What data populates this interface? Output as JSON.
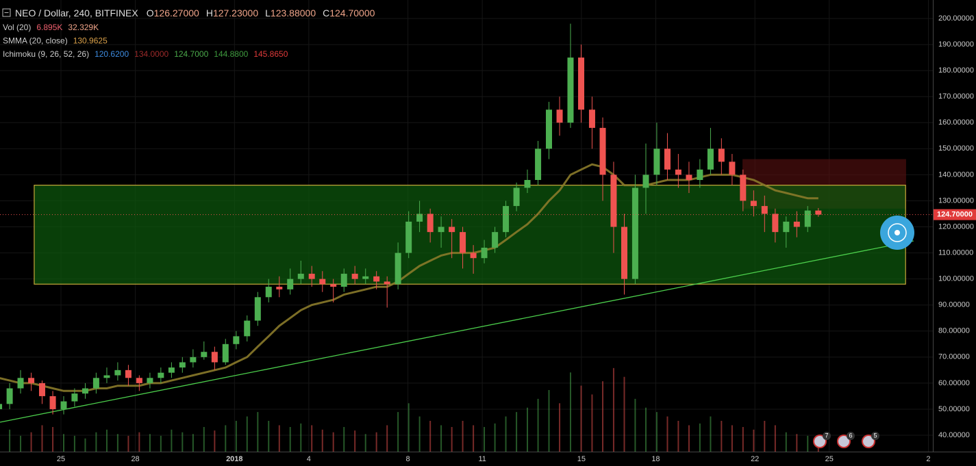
{
  "chart_data": {
    "type": "candlestick",
    "title": "NEO / Dollar, 240, BITFINEX",
    "ohlc_header": [
      {
        "key": "O",
        "value": "126.27000"
      },
      {
        "key": "H",
        "value": "127.23000"
      },
      {
        "key": "L",
        "value": "123.88000"
      },
      {
        "key": "C",
        "value": "124.70000"
      }
    ],
    "indicators": [
      {
        "name": "Vol (20)",
        "values": [
          "6.895K",
          "32.329K"
        ],
        "colors": [
          "#f0606e",
          "#f0a58a"
        ]
      },
      {
        "name": "SMMA (20, close)",
        "values": [
          "130.9625"
        ],
        "colors": [
          "#d9a04a"
        ]
      },
      {
        "name": "Ichimoku (9, 26, 52, 26)",
        "values": [
          "120.6200",
          "134.0000",
          "124.7000",
          "144.8800",
          "145.8650"
        ],
        "colors": [
          "#3d8be0",
          "#9c2a2a",
          "#4aa84a",
          "#3e9a3e",
          "#e03a3a"
        ]
      }
    ],
    "x": [
      -2.5,
      -2.07,
      -1.63,
      -1.2,
      -0.76,
      -0.33,
      0.11,
      0.55,
      0.98,
      1.42,
      1.85,
      2.29,
      2.72,
      3.16,
      3.59,
      4.03,
      4.46,
      4.9,
      5.33,
      5.77,
      6.2,
      6.64,
      7.07,
      7.51,
      7.94,
      8.38,
      8.81,
      9.25,
      9.68,
      10.12,
      10.55,
      10.99,
      11.42,
      11.86,
      12.29,
      12.73,
      13.16,
      13.6,
      14.03,
      14.47,
      14.9,
      15.34,
      15.77,
      16.21,
      16.64,
      17.08,
      17.51,
      17.95,
      18.38,
      18.82,
      19.25,
      19.69,
      20.12,
      20.56,
      20.99,
      21.43,
      21.86,
      22.3,
      22.73,
      23.17,
      23.6,
      24.04,
      24.47,
      24.91,
      25.34,
      25.78,
      26.21,
      26.65,
      27.08,
      27.52,
      27.95,
      28.39,
      28.82,
      29.26,
      29.69,
      30.13,
      30.56
    ],
    "open": [
      50,
      52,
      58,
      62,
      60,
      55,
      50,
      53,
      56,
      58,
      62,
      63,
      65,
      62,
      60,
      62,
      64,
      66,
      68,
      70,
      72,
      68,
      75,
      78,
      84,
      93,
      97,
      96,
      100,
      102,
      100,
      98,
      97,
      102,
      100,
      101,
      99,
      98,
      110,
      122,
      125,
      118,
      120,
      118,
      110,
      108,
      112,
      118,
      128,
      135,
      138,
      150,
      165,
      160,
      185,
      165,
      158,
      140,
      120,
      100,
      135,
      140,
      150,
      142,
      140,
      138,
      142,
      150,
      145,
      140,
      130,
      128,
      125,
      118,
      122,
      120,
      126.27
    ],
    "high": [
      55,
      60,
      65,
      64,
      61,
      57,
      55,
      58,
      60,
      64,
      66,
      68,
      67,
      63,
      64,
      66,
      68,
      70,
      73,
      76,
      74,
      77,
      80,
      86,
      95,
      100,
      101,
      104,
      107,
      105,
      103,
      100,
      104,
      105,
      104,
      103,
      101,
      114,
      126,
      130,
      127,
      124,
      123,
      120,
      113,
      115,
      120,
      130,
      137,
      142,
      153,
      168,
      170,
      198,
      190,
      170,
      162,
      145,
      125,
      140,
      152,
      160,
      156,
      148,
      145,
      146,
      158,
      154,
      148,
      142,
      134,
      132,
      127,
      124,
      126,
      128,
      127.23
    ],
    "low": [
      48,
      50,
      56,
      57,
      52,
      48,
      48,
      51,
      54,
      56,
      60,
      61,
      59,
      57,
      58,
      60,
      62,
      64,
      66,
      69,
      65,
      67,
      73,
      76,
      82,
      91,
      93,
      94,
      98,
      97,
      95,
      91,
      95,
      98,
      98,
      96,
      89,
      96,
      108,
      118,
      114,
      112,
      108,
      104,
      102,
      106,
      110,
      116,
      126,
      133,
      136,
      146,
      155,
      158,
      160,
      150,
      130,
      110,
      94,
      98,
      125,
      136,
      138,
      135,
      133,
      135,
      140,
      140,
      136,
      126,
      124,
      118,
      114,
      112,
      116,
      118,
      123.88
    ],
    "close": [
      52,
      58,
      62,
      60,
      55,
      50,
      53,
      56,
      58,
      62,
      63,
      65,
      62,
      60,
      62,
      64,
      66,
      68,
      70,
      72,
      68,
      75,
      78,
      84,
      93,
      97,
      96,
      100,
      102,
      100,
      98,
      97,
      102,
      100,
      101,
      99,
      98,
      110,
      122,
      125,
      118,
      120,
      118,
      110,
      108,
      112,
      118,
      128,
      135,
      138,
      150,
      165,
      160,
      185,
      165,
      158,
      140,
      120,
      100,
      135,
      140,
      150,
      142,
      140,
      138,
      142,
      150,
      145,
      140,
      130,
      128,
      125,
      118,
      122,
      120,
      126.27,
      124.7
    ],
    "smma": [
      62,
      61,
      60,
      60,
      59,
      58,
      57,
      57,
      57,
      58,
      58,
      59,
      59,
      59,
      60,
      60,
      61,
      62,
      63,
      64,
      65,
      66,
      68,
      70,
      74,
      78,
      82,
      85,
      88,
      90,
      91,
      92,
      94,
      95,
      96,
      97,
      97,
      99,
      102,
      105,
      107,
      109,
      110,
      110,
      110,
      111,
      112,
      115,
      118,
      121,
      125,
      130,
      134,
      140,
      142,
      144,
      143,
      140,
      136,
      136,
      136,
      137,
      138,
      138,
      138,
      139,
      140,
      140,
      140,
      139,
      138,
      136,
      134,
      133,
      132,
      131,
      130.9625
    ],
    "volume": [
      20,
      25,
      18,
      22,
      30,
      28,
      20,
      18,
      15,
      22,
      25,
      20,
      18,
      22,
      20,
      18,
      25,
      22,
      20,
      28,
      24,
      30,
      35,
      40,
      45,
      35,
      30,
      28,
      32,
      30,
      25,
      22,
      28,
      24,
      20,
      22,
      30,
      45,
      55,
      40,
      35,
      30,
      28,
      35,
      30,
      28,
      32,
      40,
      45,
      50,
      60,
      70,
      55,
      90,
      75,
      65,
      80,
      95,
      85,
      60,
      50,
      45,
      40,
      35,
      30,
      32,
      40,
      35,
      30,
      28,
      25,
      35,
      30,
      22,
      20,
      18,
      6.895
    ],
    "vlim": [
      0,
      140
    ],
    "up_color": "#4caf50",
    "down_color": "#ef5350",
    "smma_color": "#8a7a2a",
    "xlim": [
      -2.46,
      35.18
    ],
    "xticks": [
      {
        "value": 0,
        "label": "25"
      },
      {
        "value": 3,
        "label": "28"
      },
      {
        "value": 7,
        "label": "2018"
      },
      {
        "value": 10,
        "label": "4"
      },
      {
        "value": 14,
        "label": "8"
      },
      {
        "value": 17,
        "label": "11"
      },
      {
        "value": 21,
        "label": "15"
      },
      {
        "value": 24,
        "label": "18"
      },
      {
        "value": 28,
        "label": "22"
      },
      {
        "value": 31,
        "label": "25"
      },
      {
        "value": 35,
        "label": "2"
      }
    ],
    "ylim": [
      33.7,
      207.1
    ],
    "yticks": [
      {
        "value": 40,
        "label": "40.00000"
      },
      {
        "value": 50,
        "label": "50.00000"
      },
      {
        "value": 60,
        "label": "60.00000"
      },
      {
        "value": 70,
        "label": "70.00000"
      },
      {
        "value": 80,
        "label": "80.00000"
      },
      {
        "value": 90,
        "label": "90.00000"
      },
      {
        "value": 100,
        "label": "100.00000"
      },
      {
        "value": 110,
        "label": "110.00000"
      },
      {
        "value": 120,
        "label": "120.00000"
      },
      {
        "value": 130,
        "label": "130.00000"
      },
      {
        "value": 140,
        "label": "140.00000"
      },
      {
        "value": 150,
        "label": "150.00000"
      },
      {
        "value": 160,
        "label": "160.00000"
      },
      {
        "value": 170,
        "label": "170.00000"
      },
      {
        "value": 180,
        "label": "180.00000"
      },
      {
        "value": 190,
        "label": "190.00000"
      },
      {
        "value": 200,
        "label": "200.00000"
      }
    ],
    "grid": true,
    "last_price": {
      "value": 124.7,
      "label": "124.70000"
    },
    "zone": {
      "x": [
        -1.08,
        34.08
      ],
      "y": [
        98,
        136
      ],
      "color": "#0d5a0d",
      "border": "#c8a93a"
    },
    "cloud_box": {
      "x": [
        27.5,
        34.1
      ],
      "y": [
        127,
        146
      ],
      "color": "#5a1010"
    },
    "trend_line": {
      "x": [
        -2.46,
        34.4
      ],
      "y": [
        45,
        114.6
      ],
      "color": "#4cd04c"
    },
    "event_badges": [
      "7",
      "6",
      "5"
    ]
  }
}
